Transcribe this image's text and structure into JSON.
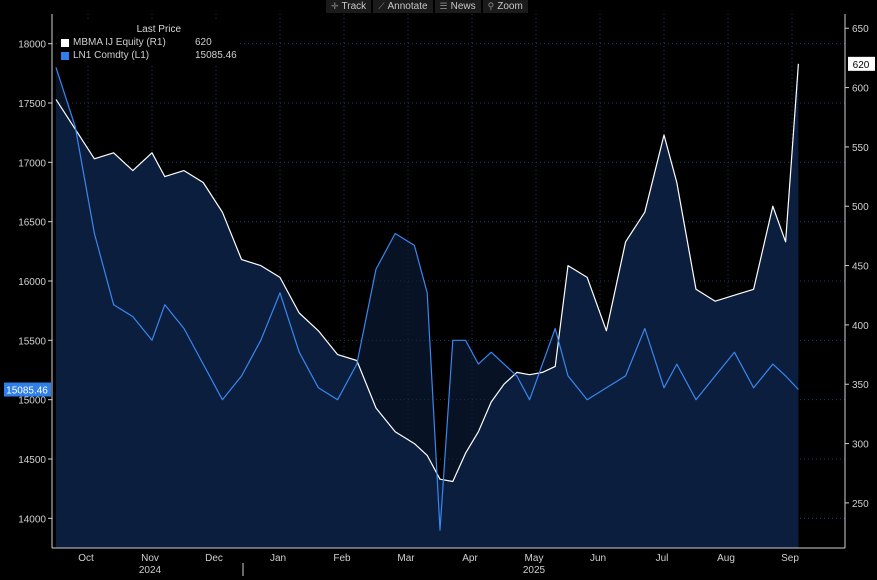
{
  "toolbar": [
    {
      "name": "track-button",
      "icon": "crosshair-icon",
      "glyph": "✛",
      "label": "Track"
    },
    {
      "name": "annotate-button",
      "icon": "pencil-icon",
      "glyph": "⟋",
      "label": "Annotate"
    },
    {
      "name": "news-button",
      "icon": "news-icon",
      "glyph": "☰",
      "label": "News"
    },
    {
      "name": "zoom-button",
      "icon": "magnifier-icon",
      "glyph": "⚲",
      "label": "Zoom"
    }
  ],
  "legend": {
    "title": "Last Price",
    "items": [
      {
        "label": "MBMA IJ Equity  (R1)",
        "value": "620",
        "color": "#ffffff"
      },
      {
        "label": "LN1 Comdty  (L1)",
        "value": "15085.46",
        "color": "#2f7fe8"
      }
    ]
  },
  "chart_data": {
    "type": "line",
    "colors": {
      "bg": "#000000",
      "area": "#0b1e3d",
      "grid": "#1f3a66",
      "white": "#ffffff",
      "blue": "#3a86f0",
      "axis": "#d0d0d0"
    },
    "x_tick_labels": [
      "Oct",
      "Nov",
      "Dec",
      "Jan",
      "Feb",
      "Mar",
      "Apr",
      "May",
      "Jun",
      "Jul",
      "Aug",
      "Sep"
    ],
    "x_year_labels": [
      {
        "label": "2024",
        "month": "Nov"
      },
      {
        "label": "2025",
        "month": "May"
      }
    ],
    "left_axis": {
      "ticks": [
        14000,
        14500,
        15000,
        15500,
        16000,
        16500,
        17000,
        17500,
        18000
      ],
      "range": [
        13750,
        18250
      ]
    },
    "right_axis": {
      "ticks": [
        250,
        300,
        350,
        400,
        450,
        500,
        550,
        600,
        650
      ],
      "range": [
        212,
        662
      ]
    },
    "left_last": "15085.46",
    "right_last": "620",
    "series": [
      {
        "name": "MBMA IJ Equity (R1)",
        "axis": "right",
        "color": "white",
        "x": [
          0,
          0.3,
          0.6,
          0.9,
          1.2,
          1.5,
          1.7,
          2.0,
          2.3,
          2.6,
          2.9,
          3.2,
          3.5,
          3.8,
          4.1,
          4.4,
          4.7,
          5.0,
          5.3,
          5.6,
          5.8,
          6.0,
          6.2,
          6.4,
          6.6,
          6.8,
          7.0,
          7.2,
          7.4,
          7.6,
          7.8,
          8.0,
          8.3,
          8.6,
          8.9,
          9.2,
          9.5,
          9.7,
          10.0,
          10.3,
          10.6,
          10.9,
          11.2,
          11.4,
          11.6
        ],
        "y": [
          590,
          565,
          540,
          545,
          530,
          545,
          525,
          530,
          520,
          495,
          455,
          450,
          440,
          410,
          395,
          375,
          370,
          330,
          310,
          300,
          290,
          270,
          268,
          292,
          310,
          335,
          350,
          360,
          358,
          360,
          365,
          450,
          440,
          395,
          470,
          495,
          560,
          520,
          430,
          420,
          425,
          430,
          500,
          470,
          620
        ]
      },
      {
        "name": "LN1 Comdty (L1)",
        "axis": "left",
        "color": "blue",
        "x": [
          0,
          0.3,
          0.6,
          0.9,
          1.2,
          1.5,
          1.7,
          2.0,
          2.3,
          2.6,
          2.9,
          3.2,
          3.5,
          3.8,
          4.1,
          4.4,
          4.7,
          5.0,
          5.3,
          5.6,
          5.8,
          6.0,
          6.2,
          6.4,
          6.6,
          6.8,
          7.0,
          7.2,
          7.4,
          7.6,
          7.8,
          8.0,
          8.3,
          8.6,
          8.9,
          9.2,
          9.5,
          9.7,
          10.0,
          10.3,
          10.6,
          10.9,
          11.2,
          11.4,
          11.6
        ],
        "y": [
          17800,
          17300,
          16400,
          15800,
          15700,
          15500,
          15800,
          15600,
          15300,
          15000,
          15200,
          15500,
          15900,
          15400,
          15100,
          15000,
          15300,
          16100,
          16400,
          16300,
          15900,
          13900,
          15500,
          15500,
          15300,
          15400,
          15300,
          15200,
          15000,
          15300,
          15600,
          15200,
          15000,
          15100,
          15200,
          15600,
          15100,
          15300,
          15000,
          15200,
          15400,
          15100,
          15300,
          15200,
          15085.46
        ]
      }
    ]
  }
}
